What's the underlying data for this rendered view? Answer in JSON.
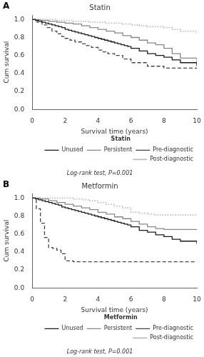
{
  "chart_data": [
    {
      "type": "step",
      "panel_label": "A",
      "title": "Statin",
      "xlabel": "Survival time (years)",
      "ylabel": "Cum survival",
      "xlim": [
        0,
        10
      ],
      "ylim": [
        0,
        1.05
      ],
      "xticks": [
        0,
        2,
        4,
        6,
        8,
        10
      ],
      "yticks": [
        {
          "value": 0,
          "label": "0.0"
        },
        0.2,
        0.4,
        0.6,
        0.8,
        {
          "value": 1.0,
          "label": "1.0"
        }
      ],
      "grid": false,
      "legend": "lower right",
      "legend_title": "Statin",
      "annotations": [
        "Log-rank test, P=0.001"
      ],
      "series": [
        {
          "name": "Unused",
          "color": "#1a1a1a",
          "line_style": "solid",
          "x": [
            0,
            0.2,
            0.4,
            0.6,
            0.8,
            1.0,
            1.2,
            1.4,
            1.6,
            1.8,
            2.0,
            2.2,
            2.4,
            2.6,
            2.8,
            3.0,
            3.2,
            3.4,
            3.6,
            3.8,
            4.0,
            4.2,
            4.4,
            4.6,
            4.8,
            5.0,
            5.2,
            5.4,
            5.6,
            5.8,
            6.0,
            6.5,
            7.0,
            7.5,
            8.0,
            8.5,
            9.0,
            10.0
          ],
          "values": [
            1.0,
            0.99,
            0.98,
            0.97,
            0.96,
            0.95,
            0.94,
            0.93,
            0.92,
            0.91,
            0.89,
            0.88,
            0.87,
            0.86,
            0.85,
            0.84,
            0.83,
            0.82,
            0.81,
            0.8,
            0.79,
            0.78,
            0.77,
            0.76,
            0.75,
            0.74,
            0.73,
            0.72,
            0.71,
            0.7,
            0.68,
            0.65,
            0.62,
            0.6,
            0.58,
            0.55,
            0.52,
            0.48
          ]
        },
        {
          "name": "Persistent",
          "color": "#888888",
          "line_style": "solid",
          "x": [
            0,
            0.5,
            1.0,
            1.5,
            2.0,
            2.5,
            3.0,
            3.5,
            4.0,
            4.5,
            5.0,
            5.5,
            6.0,
            6.5,
            7.0,
            7.5,
            8.0,
            8.5,
            9.0,
            10.0
          ],
          "values": [
            1.0,
            0.99,
            0.98,
            0.97,
            0.96,
            0.95,
            0.93,
            0.91,
            0.89,
            0.87,
            0.85,
            0.82,
            0.8,
            0.77,
            0.74,
            0.72,
            0.68,
            0.62,
            0.57,
            0.5
          ]
        },
        {
          "name": "Pre-diagnostic",
          "color": "#444444",
          "line_style": "dashed",
          "x": [
            0,
            0.3,
            0.6,
            0.9,
            1.2,
            1.5,
            1.8,
            2.0,
            2.3,
            2.6,
            3.0,
            3.3,
            3.6,
            4.0,
            4.3,
            4.6,
            5.0,
            5.5,
            6.0,
            7.0,
            8.0,
            10.0
          ],
          "values": [
            1.0,
            0.97,
            0.94,
            0.91,
            0.87,
            0.84,
            0.81,
            0.79,
            0.77,
            0.75,
            0.73,
            0.71,
            0.69,
            0.66,
            0.64,
            0.62,
            0.6,
            0.56,
            0.52,
            0.48,
            0.46,
            0.45
          ]
        },
        {
          "name": "Post-diagnostic",
          "color": "#bbbbbb",
          "line_style": "dotted",
          "x": [
            0,
            0.5,
            1.0,
            1.5,
            2.0,
            2.5,
            3.0,
            3.5,
            4.0,
            4.5,
            5.0,
            5.5,
            6.0,
            6.5,
            7.0,
            7.5,
            8.0,
            8.5,
            9.0,
            10.0
          ],
          "values": [
            1.0,
            1.0,
            1.0,
            0.99,
            0.99,
            0.98,
            0.98,
            0.97,
            0.97,
            0.96,
            0.96,
            0.95,
            0.94,
            0.93,
            0.92,
            0.92,
            0.91,
            0.89,
            0.87,
            0.85
          ]
        }
      ]
    },
    {
      "type": "step",
      "panel_label": "B",
      "title": "Metformin",
      "xlabel": "Survival time (years)",
      "ylabel": "Cum survival",
      "xlim": [
        0,
        10
      ],
      "ylim": [
        0,
        1.05
      ],
      "xticks": [
        0,
        2,
        4,
        6,
        8,
        10
      ],
      "yticks": [
        {
          "value": 0,
          "label": "0.0"
        },
        0.2,
        0.4,
        0.6,
        0.8,
        {
          "value": 1.0,
          "label": "1.0"
        }
      ],
      "grid": false,
      "legend": "lower right",
      "legend_title": "Metformin",
      "annotations": [
        "Log-rank test, P=0.001"
      ],
      "series": [
        {
          "name": "Unused",
          "color": "#1a1a1a",
          "line_style": "solid",
          "x": [
            0,
            0.2,
            0.4,
            0.6,
            0.8,
            1.0,
            1.2,
            1.4,
            1.6,
            1.8,
            2.0,
            2.2,
            2.4,
            2.6,
            2.8,
            3.0,
            3.2,
            3.4,
            3.6,
            3.8,
            4.0,
            4.2,
            4.4,
            4.6,
            4.8,
            5.0,
            5.2,
            5.4,
            5.6,
            5.8,
            6.0,
            6.5,
            7.0,
            7.5,
            8.0,
            8.5,
            9.0,
            10.0
          ],
          "values": [
            1.0,
            0.99,
            0.98,
            0.97,
            0.96,
            0.95,
            0.94,
            0.93,
            0.92,
            0.9,
            0.89,
            0.88,
            0.87,
            0.86,
            0.85,
            0.84,
            0.83,
            0.82,
            0.81,
            0.8,
            0.79,
            0.78,
            0.77,
            0.76,
            0.75,
            0.74,
            0.73,
            0.72,
            0.71,
            0.7,
            0.68,
            0.64,
            0.62,
            0.59,
            0.57,
            0.54,
            0.52,
            0.49
          ]
        },
        {
          "name": "Persistent",
          "color": "#888888",
          "line_style": "solid",
          "x": [
            0,
            0.5,
            1.0,
            1.5,
            2.0,
            2.5,
            3.0,
            3.5,
            4.0,
            4.5,
            5.0,
            5.5,
            6.0,
            6.5,
            7.0,
            7.5,
            8.0,
            9.0,
            10.0
          ],
          "values": [
            1.0,
            0.99,
            0.97,
            0.95,
            0.93,
            0.91,
            0.89,
            0.87,
            0.84,
            0.82,
            0.79,
            0.77,
            0.74,
            0.71,
            0.68,
            0.66,
            0.65,
            0.65,
            0.65
          ]
        },
        {
          "name": "Pre-diagnostic",
          "color": "#444444",
          "line_style": "dashed",
          "x": [
            0,
            0.25,
            0.5,
            0.75,
            1.0,
            1.25,
            1.5,
            1.75,
            2.0,
            2.5,
            3.0,
            4.0,
            5.0,
            6.0,
            7.0,
            10.0
          ],
          "values": [
            1.0,
            0.88,
            0.72,
            0.56,
            0.45,
            0.44,
            0.42,
            0.38,
            0.3,
            0.29,
            0.29,
            0.29,
            0.29,
            0.29,
            0.29,
            0.29
          ]
        },
        {
          "name": "Post-diagnostic",
          "color": "#bbbbbb",
          "line_style": "dotted",
          "x": [
            0,
            0.5,
            1.0,
            1.5,
            2.0,
            2.5,
            3.0,
            3.5,
            4.0,
            4.5,
            5.0,
            5.5,
            6.0,
            6.5,
            7.0,
            7.5,
            8.0,
            9.0,
            10.0
          ],
          "values": [
            1.0,
            1.0,
            1.0,
            1.0,
            1.0,
            0.99,
            0.98,
            0.97,
            0.95,
            0.93,
            0.91,
            0.89,
            0.84,
            0.83,
            0.82,
            0.81,
            0.81,
            0.81,
            0.81
          ]
        }
      ]
    }
  ]
}
